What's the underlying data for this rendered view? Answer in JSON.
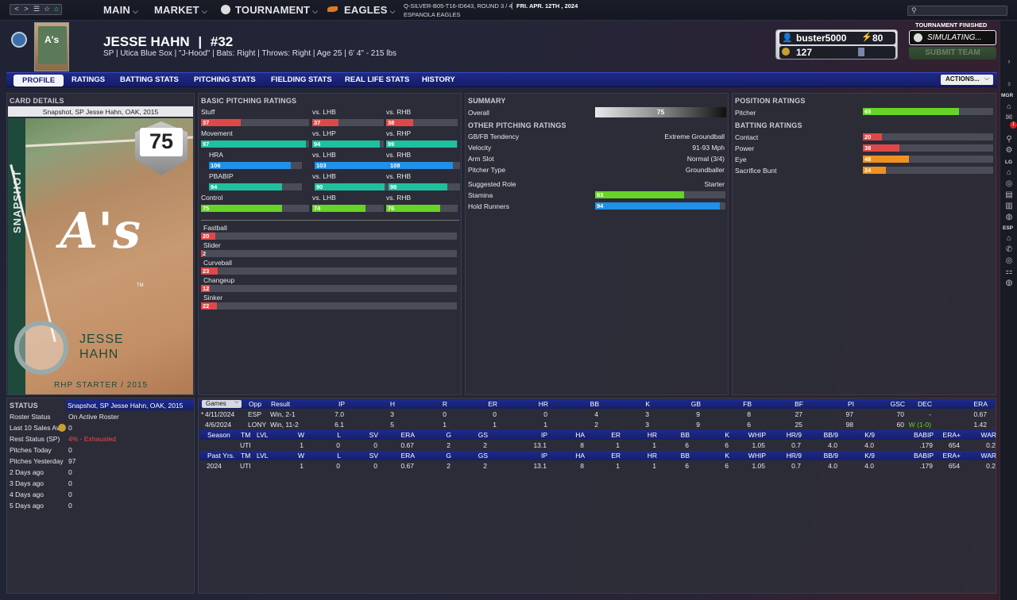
{
  "topbar": {
    "nav": {
      "back": "<",
      "forward": ">",
      "menu": "☰",
      "star": "☆",
      "home": "⌂"
    },
    "menus": [
      {
        "label": "MAIN"
      },
      {
        "label": "MARKET"
      },
      {
        "label": "TOURNAMENT"
      },
      {
        "label": "EAGLES"
      }
    ],
    "game_info": "Q-SILVER-B05-T16-ID643, ROUND 3 / 4",
    "date": "FRI. APR. 12TH , 2024",
    "team": "ESPANOLA EAGLES",
    "search_value": ""
  },
  "player": {
    "name": "JESSE HAHN",
    "sep": "|",
    "number": "#32",
    "info": "SP | Utica Blue Sox | \"J-Hood\" | Bats: Right | Throws: Right | Age 25 | 6' 4\" - 215 lbs",
    "thumb_logo": "A's"
  },
  "user": {
    "name": "buster5000",
    "points": "80",
    "coins": "127"
  },
  "tournament": {
    "status": "TOURNAMENT FINISHED",
    "sim_label": "SIMULATING...",
    "submit_label": "SUBMIT TEAM"
  },
  "tabs": [
    "PROFILE",
    "RATINGS",
    "BATTING STATS",
    "PITCHING STATS",
    "FIELDING STATS",
    "REAL LIFE STATS",
    "HISTORY"
  ],
  "actions_label": "ACTIONS...",
  "card_details": {
    "title": "CARD DETAILS",
    "subtitle": "Snapshot, SP Jesse Hahn, OAK, 2015",
    "rating": "75",
    "side_label": "SNAPSHOT",
    "logo": "A's",
    "tm": "TM",
    "first": "JESSE",
    "last": "HAHN",
    "footer": "RHP STARTER / 2015"
  },
  "status": {
    "title": "STATUS",
    "card": "Snapshot, SP Jesse Hahn, OAK, 2015",
    "rows": [
      {
        "label": "Roster Status",
        "value": "On Active Roster"
      },
      {
        "label": "Last 10 Sales Av",
        "value": "0"
      },
      {
        "label": "Rest Status (SP)",
        "value": "4% - Exhausted"
      },
      {
        "label": "Pitches Today",
        "value": "0"
      },
      {
        "label": "Pitches Yesterday",
        "value": "97"
      },
      {
        "label": "2 Days ago",
        "value": "0"
      },
      {
        "label": "3 Days ago",
        "value": "0"
      },
      {
        "label": "4 Days ago",
        "value": "0"
      },
      {
        "label": "5 Days ago",
        "value": "0"
      }
    ]
  },
  "pitching": {
    "title": "BASIC PITCHING RATINGS",
    "groups": [
      {
        "label": "Stuff",
        "sub": false,
        "values": [
          37,
          37,
          38
        ],
        "colors": [
          "#e04848",
          "#e04848",
          "#e04848"
        ]
      },
      {
        "label": "Movement",
        "sub": false,
        "values": [
          97,
          94,
          99
        ],
        "colors": [
          "#1fc0a0",
          "#1fc0a0",
          "#1fc0a0"
        ]
      },
      {
        "label": "HRA",
        "sub": true,
        "values": [
          106,
          103,
          108
        ],
        "colors": [
          "#2090e8",
          "#2090e8",
          "#2090e8"
        ]
      },
      {
        "label": "PBABIP",
        "sub": true,
        "values": [
          94,
          90,
          98
        ],
        "colors": [
          "#1fc0a0",
          "#1fc0a0",
          "#1fc0a0"
        ]
      },
      {
        "label": "Control",
        "sub": false,
        "values": [
          75,
          74,
          76
        ],
        "colors": [
          "#66d426",
          "#66d426",
          "#66d426"
        ]
      }
    ],
    "split_lhb": "vs. LHB",
    "split_rhb": "vs. RHB",
    "split_lhp": "vs. LHP",
    "split_rhp": "vs. RHP",
    "pitches": [
      {
        "label": "Fastball",
        "value": 20
      },
      {
        "label": "Slider",
        "value": 2
      },
      {
        "label": "Curveball",
        "value": 23
      },
      {
        "label": "Changeup",
        "value": 12
      },
      {
        "label": "Sinker",
        "value": 22
      }
    ],
    "pitch_color": "#e04848"
  },
  "summary": {
    "title": "SUMMARY",
    "overall_label": "Overall",
    "overall": "75",
    "other_title": "OTHER PITCHING RATINGS",
    "rows": [
      {
        "label": "GB/FB Tendency",
        "value": "Extreme Groundball"
      },
      {
        "label": "Velocity",
        "value": "91-93 Mph"
      },
      {
        "label": "Arm Slot",
        "value": "Normal (3/4)"
      },
      {
        "label": "Pitcher Type",
        "value": "Groundballer"
      }
    ],
    "role_label": "Suggested Role",
    "role": "Starter",
    "stamina_label": "Stamina",
    "stamina": 63,
    "hold_label": "Hold Runners",
    "hold": 94
  },
  "position": {
    "title": "POSITION RATINGS",
    "pitcher_label": "Pitcher",
    "pitcher": 65,
    "batting_title": "BATTING RATINGS",
    "batting": [
      {
        "label": "Contact",
        "value": 20,
        "color": "#e04848"
      },
      {
        "label": "Power",
        "value": 38,
        "color": "#e04848"
      },
      {
        "label": "Eye",
        "value": 48,
        "color": "#f09020"
      },
      {
        "label": "Sacrifice Bunt",
        "value": 24,
        "color": "#f09020"
      }
    ]
  },
  "stats": {
    "games_select": "Games",
    "games_header": [
      "Opp",
      "Result",
      "IP",
      "H",
      "R",
      "ER",
      "HR",
      "BB",
      "K",
      "GB",
      "FB",
      "BF",
      "PI",
      "GSC",
      "DEC",
      "ERA"
    ],
    "games": [
      {
        "mark": "*",
        "date": "4/11/2024",
        "cells": [
          "ESP",
          "Win, 2-1",
          "7.0",
          "3",
          "0",
          "0",
          "0",
          "4",
          "3",
          "9",
          "8",
          "27",
          "97",
          "70",
          "-",
          "0.67"
        ]
      },
      {
        "mark": "",
        "date": "4/6/2024",
        "cells": [
          "LONY",
          "Win, 11-2",
          "6.1",
          "5",
          "1",
          "1",
          "1",
          "2",
          "3",
          "9",
          "6",
          "25",
          "98",
          "60",
          "W (1-0)",
          "1.42"
        ]
      }
    ],
    "season_header": [
      "Season",
      "TM",
      "LVL",
      "W",
      "L",
      "SV",
      "ERA",
      "G",
      "GS",
      "IP",
      "HA",
      "ER",
      "HR",
      "BB",
      "K",
      "WHIP",
      "HR/9",
      "BB/9",
      "K/9",
      "BABIP",
      "ERA+",
      "WAR"
    ],
    "season_row": [
      "",
      "UTI",
      "",
      "1",
      "0",
      "0",
      "0.67",
      "2",
      "2",
      "13.1",
      "8",
      "1",
      "1",
      "6",
      "6",
      "1.05",
      "0.7",
      "4.0",
      "4.0",
      ".179",
      "654",
      "0.2"
    ],
    "past_header": [
      "Past Yrs.",
      "TM",
      "LVL",
      "W",
      "L",
      "SV",
      "ERA",
      "G",
      "GS",
      "IP",
      "HA",
      "ER",
      "HR",
      "BB",
      "K",
      "WHIP",
      "HR/9",
      "BB/9",
      "K/9",
      "BABIP",
      "ERA+",
      "WAR"
    ],
    "past_row": [
      "2024",
      "UTI",
      "",
      "1",
      "0",
      "0",
      "0.67",
      "2",
      "2",
      "13.1",
      "8",
      "1",
      "1",
      "6",
      "6",
      "1.05",
      "0.7",
      "4.0",
      "4.0",
      ".179",
      "654",
      "0.2"
    ]
  },
  "sidebar": {
    "mgr": "MGR",
    "lg": "LG",
    "esp": "ESP",
    "badge": "1"
  }
}
